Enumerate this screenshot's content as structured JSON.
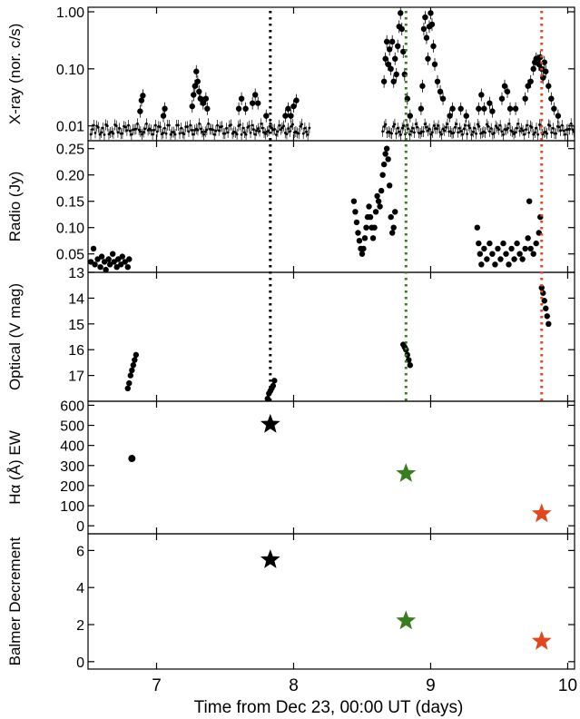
{
  "figure": {
    "xlabel": "Time from Dec 23, 00:00 UT (days)",
    "xlim": [
      6.5,
      10.05
    ],
    "xticks": [
      7,
      8,
      9,
      10
    ],
    "markers": [
      {
        "x": 7.83,
        "color": "#000000"
      },
      {
        "x": 8.82,
        "color": "#3a7d1e"
      },
      {
        "x": 9.81,
        "color": "#e0491f"
      }
    ]
  },
  "chart_data": [
    {
      "type": "scatter",
      "ylabel": "X-ray (nor. c/s)",
      "yscale": "log",
      "ylim": [
        0.0055,
        1.2
      ],
      "yticks": [
        {
          "v": 0.01,
          "label": "0.01"
        },
        {
          "v": 0.1,
          "label": "0.10"
        },
        {
          "v": 1.0,
          "label": "1.00"
        }
      ],
      "series": [
        {
          "color": "#000000",
          "errorbars": true,
          "segments": [
            {
              "x0": 6.52,
              "x1": 8.12,
              "base": 0.007,
              "hi": 0.011
            },
            {
              "x0": 8.65,
              "x1": 10.05,
              "base": 0.007,
              "hi": 0.011
            }
          ],
          "points": [
            [
              6.88,
              0.018
            ],
            [
              6.89,
              0.028
            ],
            [
              6.9,
              0.034
            ],
            [
              7.05,
              0.015
            ],
            [
              7.06,
              0.02
            ],
            [
              7.26,
              0.022
            ],
            [
              7.27,
              0.035
            ],
            [
              7.28,
              0.05
            ],
            [
              7.29,
              0.09
            ],
            [
              7.3,
              0.06
            ],
            [
              7.31,
              0.04
            ],
            [
              7.32,
              0.03
            ],
            [
              7.34,
              0.025
            ],
            [
              7.36,
              0.03
            ],
            [
              7.37,
              0.02
            ],
            [
              7.6,
              0.02
            ],
            [
              7.62,
              0.03
            ],
            [
              7.65,
              0.02
            ],
            [
              7.7,
              0.025
            ],
            [
              7.72,
              0.035
            ],
            [
              7.74,
              0.025
            ],
            [
              7.8,
              0.015
            ],
            [
              7.94,
              0.015
            ],
            [
              7.96,
              0.02
            ],
            [
              7.98,
              0.015
            ],
            [
              8.0,
              0.022
            ],
            [
              8.02,
              0.028
            ],
            [
              8.66,
              0.06
            ],
            [
              8.67,
              0.15
            ],
            [
              8.68,
              0.3
            ],
            [
              8.69,
              0.12
            ],
            [
              8.7,
              0.22
            ],
            [
              8.71,
              0.1
            ],
            [
              8.72,
              0.3
            ],
            [
              8.73,
              0.06
            ],
            [
              8.74,
              0.15
            ],
            [
              8.75,
              0.08
            ],
            [
              8.76,
              0.25
            ],
            [
              8.77,
              0.55
            ],
            [
              8.78,
              0.95
            ],
            [
              8.79,
              0.5
            ],
            [
              8.8,
              0.2
            ],
            [
              8.81,
              0.08
            ],
            [
              8.83,
              0.03
            ],
            [
              8.85,
              0.015
            ],
            [
              8.93,
              0.02
            ],
            [
              8.94,
              0.05
            ],
            [
              8.95,
              0.5
            ],
            [
              8.96,
              0.8
            ],
            [
              8.97,
              0.35
            ],
            [
              8.98,
              0.15
            ],
            [
              8.99,
              0.55
            ],
            [
              9.0,
              0.95
            ],
            [
              9.01,
              0.6
            ],
            [
              9.02,
              0.25
            ],
            [
              9.03,
              0.12
            ],
            [
              9.05,
              0.06
            ],
            [
              9.07,
              0.04
            ],
            [
              9.09,
              0.03
            ],
            [
              9.14,
              0.015
            ],
            [
              9.16,
              0.02
            ],
            [
              9.22,
              0.02
            ],
            [
              9.26,
              0.015
            ],
            [
              9.35,
              0.02
            ],
            [
              9.37,
              0.035
            ],
            [
              9.39,
              0.02
            ],
            [
              9.43,
              0.025
            ],
            [
              9.45,
              0.018
            ],
            [
              9.52,
              0.03
            ],
            [
              9.54,
              0.05
            ],
            [
              9.56,
              0.04
            ],
            [
              9.58,
              0.02
            ],
            [
              9.62,
              0.02
            ],
            [
              9.69,
              0.03
            ],
            [
              9.71,
              0.05
            ],
            [
              9.73,
              0.06
            ],
            [
              9.75,
              0.1
            ],
            [
              9.76,
              0.13
            ],
            [
              9.77,
              0.15
            ],
            [
              9.78,
              0.14
            ],
            [
              9.79,
              0.12
            ],
            [
              9.8,
              0.16
            ],
            [
              9.81,
              0.1
            ],
            [
              9.82,
              0.07
            ],
            [
              9.83,
              0.13
            ],
            [
              9.84,
              0.09
            ],
            [
              9.86,
              0.05
            ],
            [
              9.88,
              0.03
            ],
            [
              9.9,
              0.02
            ],
            [
              9.93,
              0.015
            ]
          ]
        }
      ]
    },
    {
      "type": "scatter",
      "ylabel": "Radio (Jy)",
      "yscale": "linear",
      "ylim": [
        0.015,
        0.265
      ],
      "yticks": [
        {
          "v": 0.05,
          "label": "0.05"
        },
        {
          "v": 0.1,
          "label": "0.10"
        },
        {
          "v": 0.15,
          "label": "0.15"
        },
        {
          "v": 0.2,
          "label": "0.20"
        },
        {
          "v": 0.25,
          "label": "0.25"
        }
      ],
      "series": [
        {
          "color": "#000000",
          "points": [
            [
              6.52,
              0.035
            ],
            [
              6.54,
              0.06
            ],
            [
              6.55,
              0.03
            ],
            [
              6.57,
              0.04
            ],
            [
              6.59,
              0.025
            ],
            [
              6.6,
              0.045
            ],
            [
              6.62,
              0.035
            ],
            [
              6.63,
              0.02
            ],
            [
              6.65,
              0.04
            ],
            [
              6.66,
              0.03
            ],
            [
              6.68,
              0.05
            ],
            [
              6.69,
              0.035
            ],
            [
              6.71,
              0.025
            ],
            [
              6.72,
              0.04
            ],
            [
              6.74,
              0.03
            ],
            [
              6.75,
              0.045
            ],
            [
              6.77,
              0.035
            ],
            [
              6.79,
              0.025
            ],
            [
              6.8,
              0.04
            ],
            [
              8.44,
              0.15
            ],
            [
              8.45,
              0.13
            ],
            [
              8.46,
              0.11
            ],
            [
              8.47,
              0.09
            ],
            [
              8.48,
              0.075
            ],
            [
              8.49,
              0.06
            ],
            [
              8.5,
              0.05
            ],
            [
              8.51,
              0.06
            ],
            [
              8.52,
              0.08
            ],
            [
              8.53,
              0.1
            ],
            [
              8.54,
              0.12
            ],
            [
              8.55,
              0.14
            ],
            [
              8.56,
              0.12
            ],
            [
              8.57,
              0.1
            ],
            [
              8.58,
              0.08
            ],
            [
              8.59,
              0.1
            ],
            [
              8.6,
              0.13
            ],
            [
              8.61,
              0.16
            ],
            [
              8.62,
              0.15
            ],
            [
              8.63,
              0.14
            ],
            [
              8.64,
              0.17
            ],
            [
              8.65,
              0.2
            ],
            [
              8.66,
              0.22
            ],
            [
              8.67,
              0.24
            ],
            [
              8.68,
              0.25
            ],
            [
              8.69,
              0.23
            ],
            [
              8.7,
              0.18
            ],
            [
              8.71,
              0.12
            ],
            [
              8.72,
              0.09
            ],
            [
              8.73,
              0.1
            ],
            [
              8.74,
              0.13
            ],
            [
              9.34,
              0.1
            ],
            [
              9.35,
              0.07
            ],
            [
              9.36,
              0.05
            ],
            [
              9.37,
              0.03
            ],
            [
              9.39,
              0.06
            ],
            [
              9.41,
              0.04
            ],
            [
              9.43,
              0.07
            ],
            [
              9.45,
              0.05
            ],
            [
              9.47,
              0.03
            ],
            [
              9.49,
              0.06
            ],
            [
              9.51,
              0.04
            ],
            [
              9.53,
              0.07
            ],
            [
              9.55,
              0.05
            ],
            [
              9.57,
              0.03
            ],
            [
              9.59,
              0.06
            ],
            [
              9.61,
              0.04
            ],
            [
              9.63,
              0.07
            ],
            [
              9.65,
              0.05
            ],
            [
              9.67,
              0.04
            ],
            [
              9.69,
              0.06
            ],
            [
              9.71,
              0.08
            ],
            [
              9.72,
              0.15
            ],
            [
              9.73,
              0.06
            ],
            [
              9.75,
              0.05
            ],
            [
              9.77,
              0.07
            ],
            [
              9.79,
              0.09
            ],
            [
              9.8,
              0.12
            ]
          ]
        }
      ]
    },
    {
      "type": "scatter",
      "ylabel": "Optical (V mag)",
      "yscale": "linear",
      "yinvert": true,
      "ylim": [
        18.0,
        13.0
      ],
      "yticks": [
        {
          "v": 13,
          "label": "13"
        },
        {
          "v": 14,
          "label": "14"
        },
        {
          "v": 15,
          "label": "15"
        },
        {
          "v": 16,
          "label": "16"
        },
        {
          "v": 17,
          "label": "17"
        }
      ],
      "series": [
        {
          "color": "#000000",
          "points": [
            [
              6.79,
              17.5
            ],
            [
              6.8,
              17.3
            ],
            [
              6.81,
              17.0
            ],
            [
              6.82,
              16.8
            ],
            [
              6.83,
              16.6
            ],
            [
              6.84,
              16.4
            ],
            [
              6.85,
              16.2
            ],
            [
              7.81,
              17.9
            ],
            [
              7.82,
              17.7
            ],
            [
              7.83,
              17.6
            ],
            [
              7.84,
              17.5
            ],
            [
              7.85,
              17.4
            ],
            [
              7.86,
              17.2
            ],
            [
              8.8,
              15.8
            ],
            [
              8.81,
              15.9
            ],
            [
              8.82,
              16.0
            ],
            [
              8.83,
              16.2
            ],
            [
              8.84,
              16.4
            ],
            [
              8.85,
              16.6
            ],
            [
              9.81,
              13.6
            ],
            [
              9.82,
              13.8
            ],
            [
              9.83,
              14.1
            ],
            [
              9.84,
              14.4
            ],
            [
              9.85,
              14.7
            ],
            [
              9.86,
              15.0
            ]
          ]
        }
      ]
    },
    {
      "type": "scatter",
      "ylabel": "Hα (Å) EW",
      "yscale": "linear",
      "ylim": [
        -40,
        620
      ],
      "yticks": [
        {
          "v": 0,
          "label": "0"
        },
        {
          "v": 100,
          "label": "100"
        },
        {
          "v": 200,
          "label": "200"
        },
        {
          "v": 300,
          "label": "300"
        },
        {
          "v": 400,
          "label": "400"
        },
        {
          "v": 500,
          "label": "500"
        },
        {
          "v": 600,
          "label": "600"
        }
      ],
      "points": [
        {
          "x": 6.82,
          "y": 335,
          "marker": "circle",
          "color": "#000000"
        },
        {
          "x": 7.83,
          "y": 505,
          "marker": "star",
          "color": "#000000"
        },
        {
          "x": 8.82,
          "y": 260,
          "marker": "star",
          "color": "#3a7d1e"
        },
        {
          "x": 9.81,
          "y": 60,
          "marker": "star",
          "color": "#e0491f"
        }
      ]
    },
    {
      "type": "scatter",
      "ylabel": "Balmer Decrement",
      "yscale": "linear",
      "ylim": [
        -0.4,
        6.9
      ],
      "yticks": [
        {
          "v": 0,
          "label": "0"
        },
        {
          "v": 2,
          "label": "2"
        },
        {
          "v": 4,
          "label": "4"
        },
        {
          "v": 6,
          "label": "6"
        }
      ],
      "points": [
        {
          "x": 7.83,
          "y": 5.5,
          "marker": "star",
          "color": "#000000"
        },
        {
          "x": 8.82,
          "y": 2.2,
          "marker": "star",
          "color": "#3a7d1e"
        },
        {
          "x": 9.81,
          "y": 1.1,
          "marker": "star",
          "color": "#e0491f"
        }
      ]
    }
  ]
}
